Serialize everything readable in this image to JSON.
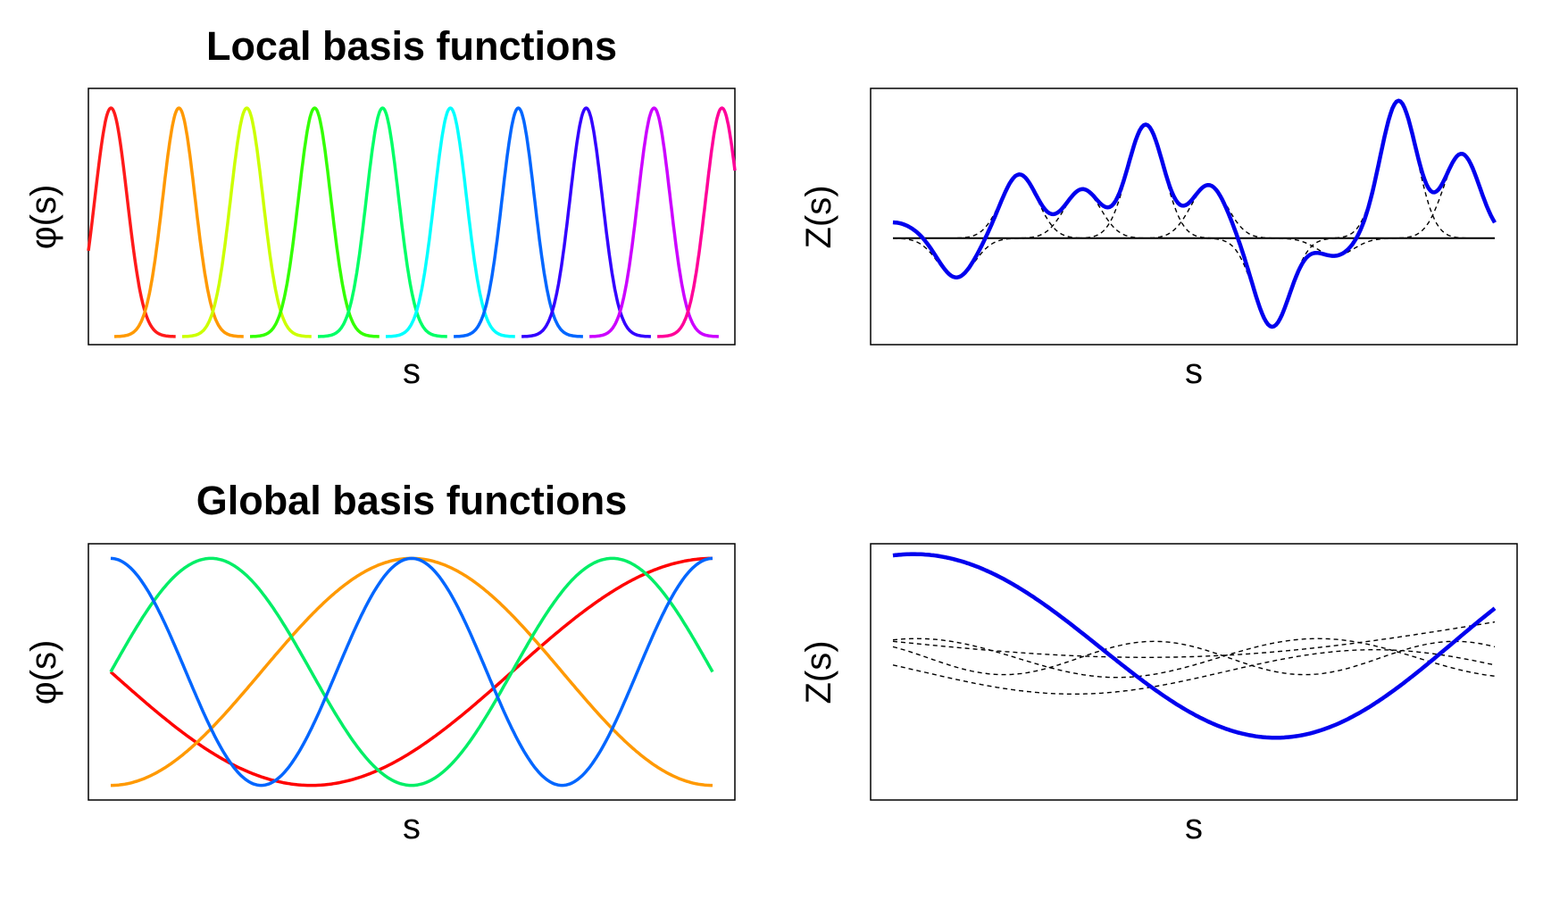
{
  "figure": {
    "local_title": "Local basis functions",
    "global_title": "Global basis functions"
  },
  "chart_data": [
    {
      "type": "line",
      "title": "Local basis functions",
      "xlabel": "s",
      "ylabel": "φ(s)",
      "grid": false,
      "legend": "none",
      "basis": "gaussian",
      "x_range": [
        0,
        10
      ],
      "centers": [
        0.35,
        1.4,
        2.45,
        3.5,
        4.55,
        5.6,
        6.65,
        7.7,
        8.75,
        9.8
      ],
      "width_sd": 0.25,
      "ylim": [
        0,
        1
      ],
      "series": [
        {
          "color": "#ff1a1a",
          "center": 0.35
        },
        {
          "color": "#ff9900",
          "center": 1.4
        },
        {
          "color": "#ccff00",
          "center": 2.45
        },
        {
          "color": "#33ff00",
          "center": 3.5
        },
        {
          "color": "#00ff66",
          "center": 4.55
        },
        {
          "color": "#00ffff",
          "center": 5.6
        },
        {
          "color": "#0066ff",
          "center": 6.65
        },
        {
          "color": "#3300ff",
          "center": 7.7
        },
        {
          "color": "#cc00ff",
          "center": 8.75
        },
        {
          "color": "#ff0099",
          "center": 9.8
        }
      ]
    },
    {
      "type": "line",
      "title": "",
      "xlabel": "s",
      "ylabel": "Z(s)",
      "grid": false,
      "legend": "none",
      "x_range": [
        0,
        10
      ],
      "ylim": [
        -1.1,
        1.6
      ],
      "line_color": "#0000ee",
      "component_style": "dashed black",
      "weights": [
        -0.45,
        0.72,
        0.55,
        1.28,
        0.6,
        -1.0,
        -0.2,
        1.55,
        0.95
      ],
      "centers": [
        1.05,
        2.1,
        3.15,
        4.2,
        5.25,
        6.3,
        7.35,
        8.4,
        9.45
      ]
    },
    {
      "type": "line",
      "title": "Global basis functions",
      "xlabel": "s",
      "ylabel": "φ(s)",
      "grid": false,
      "legend": "none",
      "basis": "cosine",
      "x_range": [
        0,
        1
      ],
      "ylim": [
        -1.05,
        1.05
      ],
      "series": [
        {
          "color": "#ff0000",
          "function": "-sin(1.5·π·s)"
        },
        {
          "color": "#ff9900",
          "function": "-cos(2·π·s)"
        },
        {
          "color": "#00ee66",
          "function": "sin(3·π·s)"
        },
        {
          "color": "#0066ff",
          "function": "cos(4·π·s)"
        }
      ]
    },
    {
      "type": "line",
      "title": "",
      "xlabel": "s",
      "ylabel": "Z(s)",
      "grid": false,
      "legend": "none",
      "x_range": [
        0,
        1
      ],
      "ylim": [
        -2.35,
        1.95
      ],
      "line_color": "#0000ee",
      "component_style": "dashed black",
      "component_count": 4,
      "series": [
        {
          "name": "",
          "values_note": ""
        }
      ]
    }
  ]
}
